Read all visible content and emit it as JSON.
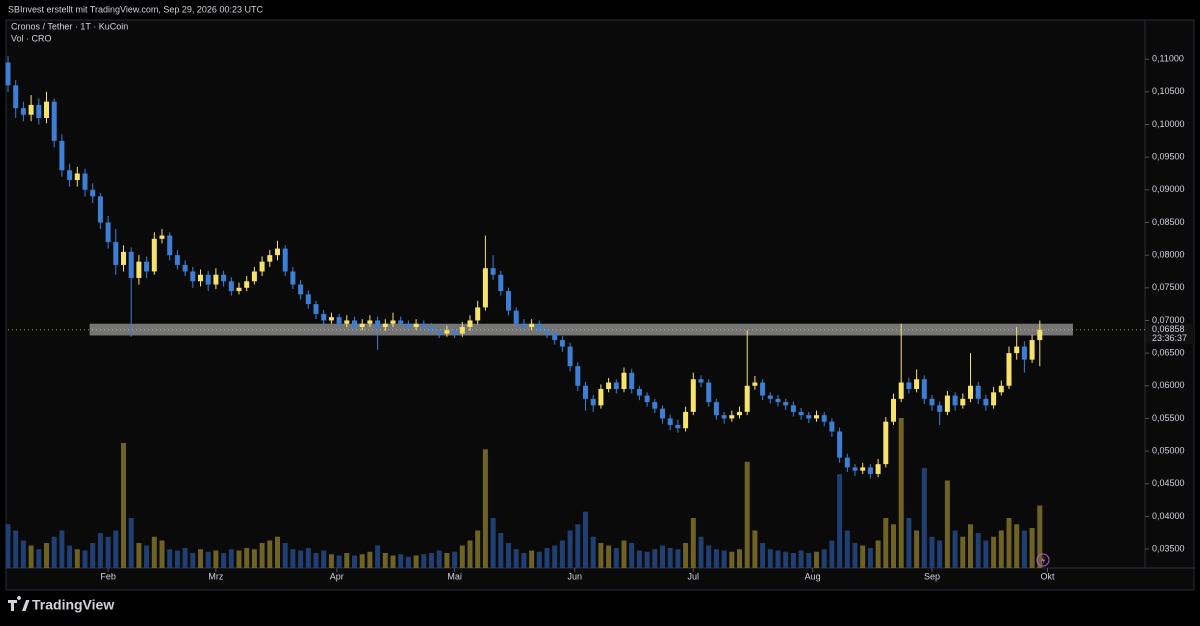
{
  "header": "SBInvest erstellt mit TradingView.com, Sep 29, 2026 00:23 UTC",
  "footer": "TradingView",
  "chart_data": {
    "type": "candlestick",
    "title": "Cronos / Tether · 1T · KuCoin",
    "volume_label": "Vol · CRO",
    "up_color": "#f5e36b",
    "down_color": "#3e7fd6",
    "volume_up_color": "#6e6224",
    "volume_down_color": "#203f72",
    "ylim": [
      0.0321,
      0.116
    ],
    "yticks": [
      {
        "value": 0.035,
        "label": "0,03500"
      },
      {
        "value": 0.04,
        "label": "0,04000"
      },
      {
        "value": 0.045,
        "label": "0,04500"
      },
      {
        "value": 0.05,
        "label": "0,05000"
      },
      {
        "value": 0.055,
        "label": "0,05500"
      },
      {
        "value": 0.06,
        "label": "0,06000"
      },
      {
        "value": 0.065,
        "label": "0,06500"
      },
      {
        "value": 0.07,
        "label": "0,07000"
      },
      {
        "value": 0.075,
        "label": "0,07500"
      },
      {
        "value": 0.08,
        "label": "0,08000"
      },
      {
        "value": 0.085,
        "label": "0,08500"
      },
      {
        "value": 0.09,
        "label": "0,09000"
      },
      {
        "value": 0.095,
        "label": "0,09500"
      },
      {
        "value": 0.1,
        "label": "0,10000"
      },
      {
        "value": 0.105,
        "label": "0,10500"
      },
      {
        "value": 0.11,
        "label": "0,11000"
      }
    ],
    "xticks": [
      {
        "value": 13,
        "label": "Feb"
      },
      {
        "value": 27,
        "label": "Mrz"
      },
      {
        "value": 42.7,
        "label": "Apr"
      },
      {
        "value": 58,
        "label": "Mai"
      },
      {
        "value": 73.6,
        "label": "Jun"
      },
      {
        "value": 89,
        "label": "Jul"
      },
      {
        "value": 104.5,
        "label": "Aug"
      },
      {
        "value": 120,
        "label": "Sep"
      },
      {
        "value": 135,
        "label": "Okt"
      }
    ],
    "last_price": {
      "value": 0.06858,
      "label": "0,06858"
    },
    "countdown": "23:36:37",
    "zone": {
      "from": 0.0677,
      "to": 0.0695,
      "start": 10.6,
      "end": 138.3
    },
    "candles": [
      [
        0.1095,
        0.1105,
        0.105,
        0.106
      ],
      [
        0.106,
        0.1068,
        0.101,
        0.1025
      ],
      [
        0.1025,
        0.1035,
        0.1005,
        0.1015
      ],
      [
        0.1015,
        0.1045,
        0.1005,
        0.103
      ],
      [
        0.103,
        0.104,
        0.1,
        0.101
      ],
      [
        0.101,
        0.105,
        0.1002,
        0.1035
      ],
      [
        0.1035,
        0.104,
        0.0965,
        0.0975
      ],
      [
        0.0975,
        0.0985,
        0.092,
        0.093
      ],
      [
        0.093,
        0.094,
        0.0905,
        0.0915
      ],
      [
        0.0915,
        0.0935,
        0.0905,
        0.0925
      ],
      [
        0.0925,
        0.0932,
        0.089,
        0.09
      ],
      [
        0.09,
        0.091,
        0.088,
        0.089
      ],
      [
        0.089,
        0.0895,
        0.084,
        0.085
      ],
      [
        0.085,
        0.086,
        0.081,
        0.082
      ],
      [
        0.082,
        0.084,
        0.077,
        0.0785
      ],
      [
        0.0785,
        0.0815,
        0.0775,
        0.0805
      ],
      [
        0.0805,
        0.0812,
        0.0675,
        0.0765
      ],
      [
        0.0765,
        0.08,
        0.0755,
        0.079
      ],
      [
        0.079,
        0.0798,
        0.0765,
        0.0775
      ],
      [
        0.0775,
        0.0835,
        0.077,
        0.0825
      ],
      [
        0.0825,
        0.084,
        0.0818,
        0.083
      ],
      [
        0.083,
        0.0835,
        0.0792,
        0.08
      ],
      [
        0.08,
        0.0808,
        0.0778,
        0.0785
      ],
      [
        0.0785,
        0.0792,
        0.0768,
        0.0775
      ],
      [
        0.0775,
        0.0782,
        0.075,
        0.076
      ],
      [
        0.076,
        0.0778,
        0.0752,
        0.077
      ],
      [
        0.077,
        0.0776,
        0.0745,
        0.0755
      ],
      [
        0.0755,
        0.078,
        0.0748,
        0.077
      ],
      [
        0.077,
        0.0776,
        0.0752,
        0.076
      ],
      [
        0.076,
        0.0766,
        0.0738,
        0.0745
      ],
      [
        0.0745,
        0.0758,
        0.074,
        0.075
      ],
      [
        0.075,
        0.0768,
        0.0745,
        0.076
      ],
      [
        0.076,
        0.0782,
        0.0755,
        0.0775
      ],
      [
        0.0775,
        0.0798,
        0.0768,
        0.079
      ],
      [
        0.079,
        0.0808,
        0.0782,
        0.08
      ],
      [
        0.08,
        0.0822,
        0.0792,
        0.081
      ],
      [
        0.081,
        0.0815,
        0.0768,
        0.0775
      ],
      [
        0.0775,
        0.0782,
        0.0748,
        0.0755
      ],
      [
        0.0755,
        0.0762,
        0.0732,
        0.074
      ],
      [
        0.074,
        0.0746,
        0.0718,
        0.0725
      ],
      [
        0.0725,
        0.073,
        0.0702,
        0.071
      ],
      [
        0.071,
        0.0716,
        0.0693,
        0.07
      ],
      [
        0.07,
        0.0712,
        0.0695,
        0.0705
      ],
      [
        0.0705,
        0.071,
        0.0688,
        0.0695
      ],
      [
        0.0695,
        0.0708,
        0.069,
        0.07
      ],
      [
        0.07,
        0.0706,
        0.0682,
        0.069
      ],
      [
        0.069,
        0.0702,
        0.0685,
        0.0695
      ],
      [
        0.0695,
        0.0708,
        0.069,
        0.07
      ],
      [
        0.07,
        0.0706,
        0.0655,
        0.069
      ],
      [
        0.069,
        0.0702,
        0.0684,
        0.0695
      ],
      [
        0.0695,
        0.0712,
        0.069,
        0.07
      ],
      [
        0.07,
        0.0706,
        0.0688,
        0.0695
      ],
      [
        0.0695,
        0.07,
        0.0683,
        0.069
      ],
      [
        0.069,
        0.0702,
        0.0685,
        0.0695
      ],
      [
        0.0695,
        0.07,
        0.0683,
        0.069
      ],
      [
        0.069,
        0.0696,
        0.0678,
        0.0685
      ],
      [
        0.0685,
        0.069,
        0.0673,
        0.068
      ],
      [
        0.068,
        0.0692,
        0.0675,
        0.0685
      ],
      [
        0.0685,
        0.069,
        0.0673,
        0.068
      ],
      [
        0.068,
        0.0698,
        0.0675,
        0.069
      ],
      [
        0.069,
        0.0708,
        0.0684,
        0.07
      ],
      [
        0.07,
        0.073,
        0.0694,
        0.072
      ],
      [
        0.072,
        0.083,
        0.0715,
        0.078
      ],
      [
        0.078,
        0.08,
        0.0762,
        0.077
      ],
      [
        0.077,
        0.0776,
        0.0738,
        0.0745
      ],
      [
        0.0745,
        0.075,
        0.0708,
        0.0715
      ],
      [
        0.0715,
        0.072,
        0.0688,
        0.0695
      ],
      [
        0.0695,
        0.0702,
        0.0683,
        0.069
      ],
      [
        0.069,
        0.0702,
        0.0685,
        0.0695
      ],
      [
        0.0695,
        0.07,
        0.0678,
        0.0685
      ],
      [
        0.0685,
        0.0692,
        0.0673,
        0.068
      ],
      [
        0.068,
        0.0686,
        0.0663,
        0.067
      ],
      [
        0.067,
        0.0676,
        0.0652,
        0.066
      ],
      [
        0.066,
        0.0666,
        0.0622,
        0.063
      ],
      [
        0.063,
        0.0636,
        0.0592,
        0.06
      ],
      [
        0.06,
        0.0606,
        0.0562,
        0.058
      ],
      [
        0.058,
        0.0586,
        0.056,
        0.057
      ],
      [
        0.057,
        0.0602,
        0.0565,
        0.0595
      ],
      [
        0.0595,
        0.0612,
        0.059,
        0.0605
      ],
      [
        0.0605,
        0.061,
        0.0588,
        0.0595
      ],
      [
        0.0595,
        0.0628,
        0.059,
        0.062
      ],
      [
        0.062,
        0.0626,
        0.0588,
        0.0595
      ],
      [
        0.0595,
        0.06,
        0.0578,
        0.0585
      ],
      [
        0.0585,
        0.059,
        0.0568,
        0.0575
      ],
      [
        0.0575,
        0.058,
        0.0558,
        0.0565
      ],
      [
        0.0565,
        0.057,
        0.0542,
        0.055
      ],
      [
        0.055,
        0.0556,
        0.0532,
        0.054
      ],
      [
        0.054,
        0.0548,
        0.0528,
        0.0535
      ],
      [
        0.0535,
        0.0568,
        0.053,
        0.056
      ],
      [
        0.056,
        0.062,
        0.0555,
        0.061
      ],
      [
        0.061,
        0.0616,
        0.0598,
        0.0605
      ],
      [
        0.0605,
        0.061,
        0.0568,
        0.0575
      ],
      [
        0.0575,
        0.058,
        0.0548,
        0.0555
      ],
      [
        0.0555,
        0.056,
        0.0542,
        0.055
      ],
      [
        0.055,
        0.0562,
        0.0545,
        0.0555
      ],
      [
        0.0555,
        0.0568,
        0.055,
        0.056
      ],
      [
        0.056,
        0.0685,
        0.0555,
        0.06
      ],
      [
        0.06,
        0.0615,
        0.0594,
        0.0605
      ],
      [
        0.0605,
        0.061,
        0.0578,
        0.0585
      ],
      [
        0.0585,
        0.059,
        0.0573,
        0.058
      ],
      [
        0.058,
        0.0586,
        0.0568,
        0.0575
      ],
      [
        0.0575,
        0.058,
        0.0563,
        0.057
      ],
      [
        0.057,
        0.0576,
        0.0553,
        0.056
      ],
      [
        0.056,
        0.0566,
        0.0548,
        0.0555
      ],
      [
        0.0555,
        0.056,
        0.0543,
        0.055
      ],
      [
        0.055,
        0.0562,
        0.0545,
        0.0555
      ],
      [
        0.0555,
        0.056,
        0.0538,
        0.0545
      ],
      [
        0.0545,
        0.055,
        0.0522,
        0.053
      ],
      [
        0.053,
        0.0536,
        0.0482,
        0.049
      ],
      [
        0.049,
        0.0496,
        0.0468,
        0.0475
      ],
      [
        0.0475,
        0.048,
        0.0462,
        0.047
      ],
      [
        0.047,
        0.0482,
        0.0465,
        0.0475
      ],
      [
        0.0475,
        0.048,
        0.0458,
        0.0465
      ],
      [
        0.0465,
        0.0488,
        0.046,
        0.048
      ],
      [
        0.048,
        0.0552,
        0.0475,
        0.0545
      ],
      [
        0.0545,
        0.0588,
        0.054,
        0.058
      ],
      [
        0.058,
        0.0695,
        0.0575,
        0.0605
      ],
      [
        0.0605,
        0.0612,
        0.0588,
        0.0595
      ],
      [
        0.0595,
        0.0625,
        0.059,
        0.061
      ],
      [
        0.061,
        0.0616,
        0.0572,
        0.058
      ],
      [
        0.058,
        0.0586,
        0.0562,
        0.057
      ],
      [
        0.057,
        0.0576,
        0.054,
        0.056
      ],
      [
        0.056,
        0.0592,
        0.0555,
        0.0585
      ],
      [
        0.0585,
        0.059,
        0.0562,
        0.057
      ],
      [
        0.057,
        0.0588,
        0.0565,
        0.058
      ],
      [
        0.058,
        0.065,
        0.0575,
        0.06
      ],
      [
        0.06,
        0.0606,
        0.0572,
        0.058
      ],
      [
        0.058,
        0.0586,
        0.0562,
        0.057
      ],
      [
        0.057,
        0.0598,
        0.0565,
        0.059
      ],
      [
        0.059,
        0.0608,
        0.0585,
        0.06
      ],
      [
        0.06,
        0.066,
        0.0595,
        0.065
      ],
      [
        0.065,
        0.069,
        0.064,
        0.066
      ],
      [
        0.066,
        0.0668,
        0.062,
        0.064
      ],
      [
        0.064,
        0.0678,
        0.0635,
        0.067
      ],
      [
        0.067,
        0.07,
        0.063,
        0.06858
      ]
    ],
    "volume": [
      35,
      30,
      22,
      18,
      15,
      20,
      25,
      30,
      18,
      15,
      14,
      20,
      28,
      25,
      30,
      100,
      40,
      20,
      18,
      25,
      22,
      15,
      14,
      16,
      12,
      15,
      13,
      14,
      12,
      15,
      14,
      16,
      15,
      20,
      22,
      25,
      20,
      15,
      14,
      16,
      12,
      14,
      11,
      10,
      12,
      10,
      11,
      13,
      18,
      12,
      10,
      11,
      9,
      10,
      11,
      12,
      14,
      12,
      13,
      18,
      22,
      30,
      95,
      40,
      28,
      20,
      15,
      12,
      14,
      13,
      16,
      18,
      22,
      30,
      35,
      45,
      25,
      20,
      18,
      16,
      22,
      20,
      14,
      13,
      15,
      18,
      16,
      15,
      20,
      40,
      25,
      18,
      15,
      14,
      13,
      15,
      85,
      30,
      20,
      15,
      14,
      13,
      12,
      14,
      12,
      13,
      15,
      22,
      75,
      30,
      20,
      18,
      16,
      22,
      40,
      35,
      120,
      40,
      30,
      80,
      25,
      22,
      70,
      30,
      25,
      35,
      28,
      22,
      25,
      30,
      40,
      35,
      30,
      32,
      50
    ]
  }
}
